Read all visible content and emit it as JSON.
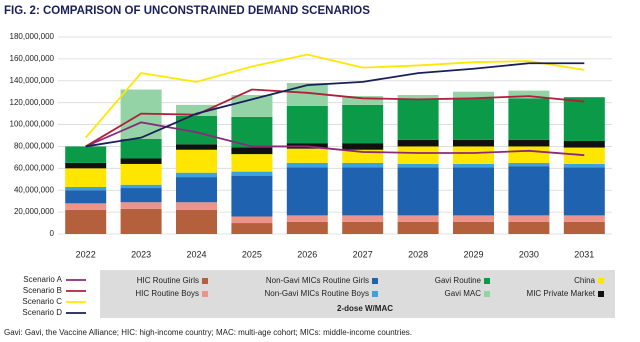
{
  "chart_data": {
    "type": "bar",
    "stacked": true,
    "title": "FIG. 2: COMPARISON OF UNCONSTRAINED DEMAND SCENARIOS",
    "categories": [
      "2022",
      "2023",
      "2024",
      "2025",
      "2026",
      "2027",
      "2028",
      "2029",
      "2030",
      "2031"
    ],
    "ylim": [
      0,
      180000000
    ],
    "yticks": [
      {
        "value": 0,
        "label": "0"
      },
      {
        "value": 20000000,
        "label": "20,000,000"
      },
      {
        "value": 40000000,
        "label": "40,000,000"
      },
      {
        "value": 60000000,
        "label": "60,000,000"
      },
      {
        "value": 80000000,
        "label": "80,000,000"
      },
      {
        "value": 100000000,
        "label": "100,000,000"
      },
      {
        "value": 120000000,
        "label": "120,000,000"
      },
      {
        "value": 140000000,
        "label": "140,000,000"
      },
      {
        "value": 160000000,
        "label": "160,000,000"
      },
      {
        "value": 180000000,
        "label": "180,000,000"
      }
    ],
    "grid": true,
    "series": [
      {
        "name": "HIC Routine Girls",
        "type": "bar",
        "color": "#b5603c",
        "values": [
          22000000,
          23000000,
          22000000,
          10000000,
          11000000,
          11000000,
          11000000,
          11000000,
          11000000,
          11000000
        ]
      },
      {
        "name": "HIC Routine Boys",
        "type": "bar",
        "color": "#ec948a",
        "values": [
          6000000,
          6000000,
          7000000,
          6000000,
          6000000,
          6000000,
          6000000,
          6000000,
          6000000,
          6000000
        ]
      },
      {
        "name": "Non-Gavi MICs Routine Girls",
        "type": "bar",
        "color": "#1f63b0",
        "values": [
          12000000,
          13000000,
          23000000,
          37000000,
          44000000,
          44000000,
          44000000,
          44000000,
          45000000,
          44000000
        ]
      },
      {
        "name": "Non-Gavi MICs Routine Boys",
        "type": "bar",
        "color": "#3aa3dd",
        "values": [
          3000000,
          3000000,
          4000000,
          4000000,
          4000000,
          4000000,
          3000000,
          3000000,
          3000000,
          3000000
        ]
      },
      {
        "name": "China",
        "type": "bar",
        "color": "#ffe600",
        "values": [
          17000000,
          19000000,
          21000000,
          16000000,
          13000000,
          12000000,
          16000000,
          16000000,
          15000000,
          15000000
        ]
      },
      {
        "name": "MIC Private Market",
        "type": "bar",
        "color": "#111111",
        "values": [
          5000000,
          5000000,
          5000000,
          6000000,
          5000000,
          6000000,
          6000000,
          6000000,
          6000000,
          6000000
        ]
      },
      {
        "name": "Gavi Routine",
        "type": "bar",
        "color": "#0a9a48",
        "values": [
          15000000,
          18000000,
          26000000,
          28000000,
          34000000,
          35000000,
          37000000,
          38000000,
          38000000,
          40000000
        ]
      },
      {
        "name": "Gavi MAC",
        "type": "bar",
        "color": "#93d3a6",
        "values": [
          0,
          45000000,
          10000000,
          20000000,
          21000000,
          8000000,
          4000000,
          6000000,
          7000000,
          0
        ]
      },
      {
        "name": "Scenario A",
        "type": "line",
        "color": "#8b2a7a",
        "values": [
          80000000,
          102000000,
          93000000,
          80000000,
          80000000,
          75000000,
          74000000,
          74000000,
          76000000,
          72000000
        ]
      },
      {
        "name": "Scenario B",
        "type": "line",
        "color": "#b0203a",
        "values": [
          80000000,
          110000000,
          109000000,
          132000000,
          129000000,
          124000000,
          123000000,
          124000000,
          126000000,
          121000000
        ]
      },
      {
        "name": "Scenario C",
        "type": "line",
        "color": "#ffe800",
        "values": [
          88000000,
          147000000,
          139000000,
          153000000,
          164000000,
          152000000,
          154000000,
          157000000,
          158000000,
          150000000
        ]
      },
      {
        "name": "Scenario D",
        "type": "line",
        "color": "#1a1f5a",
        "values": [
          80000000,
          88000000,
          110000000,
          123000000,
          136000000,
          139000000,
          147000000,
          151000000,
          156000000,
          156000000
        ]
      }
    ],
    "legend_subtitle": "2-dose W/MAC",
    "note": "Gavi: Gavi, the Vaccine Alliance; HIC: high-income country; MAC: multi-age cohort; MICs: middle-income countries."
  }
}
